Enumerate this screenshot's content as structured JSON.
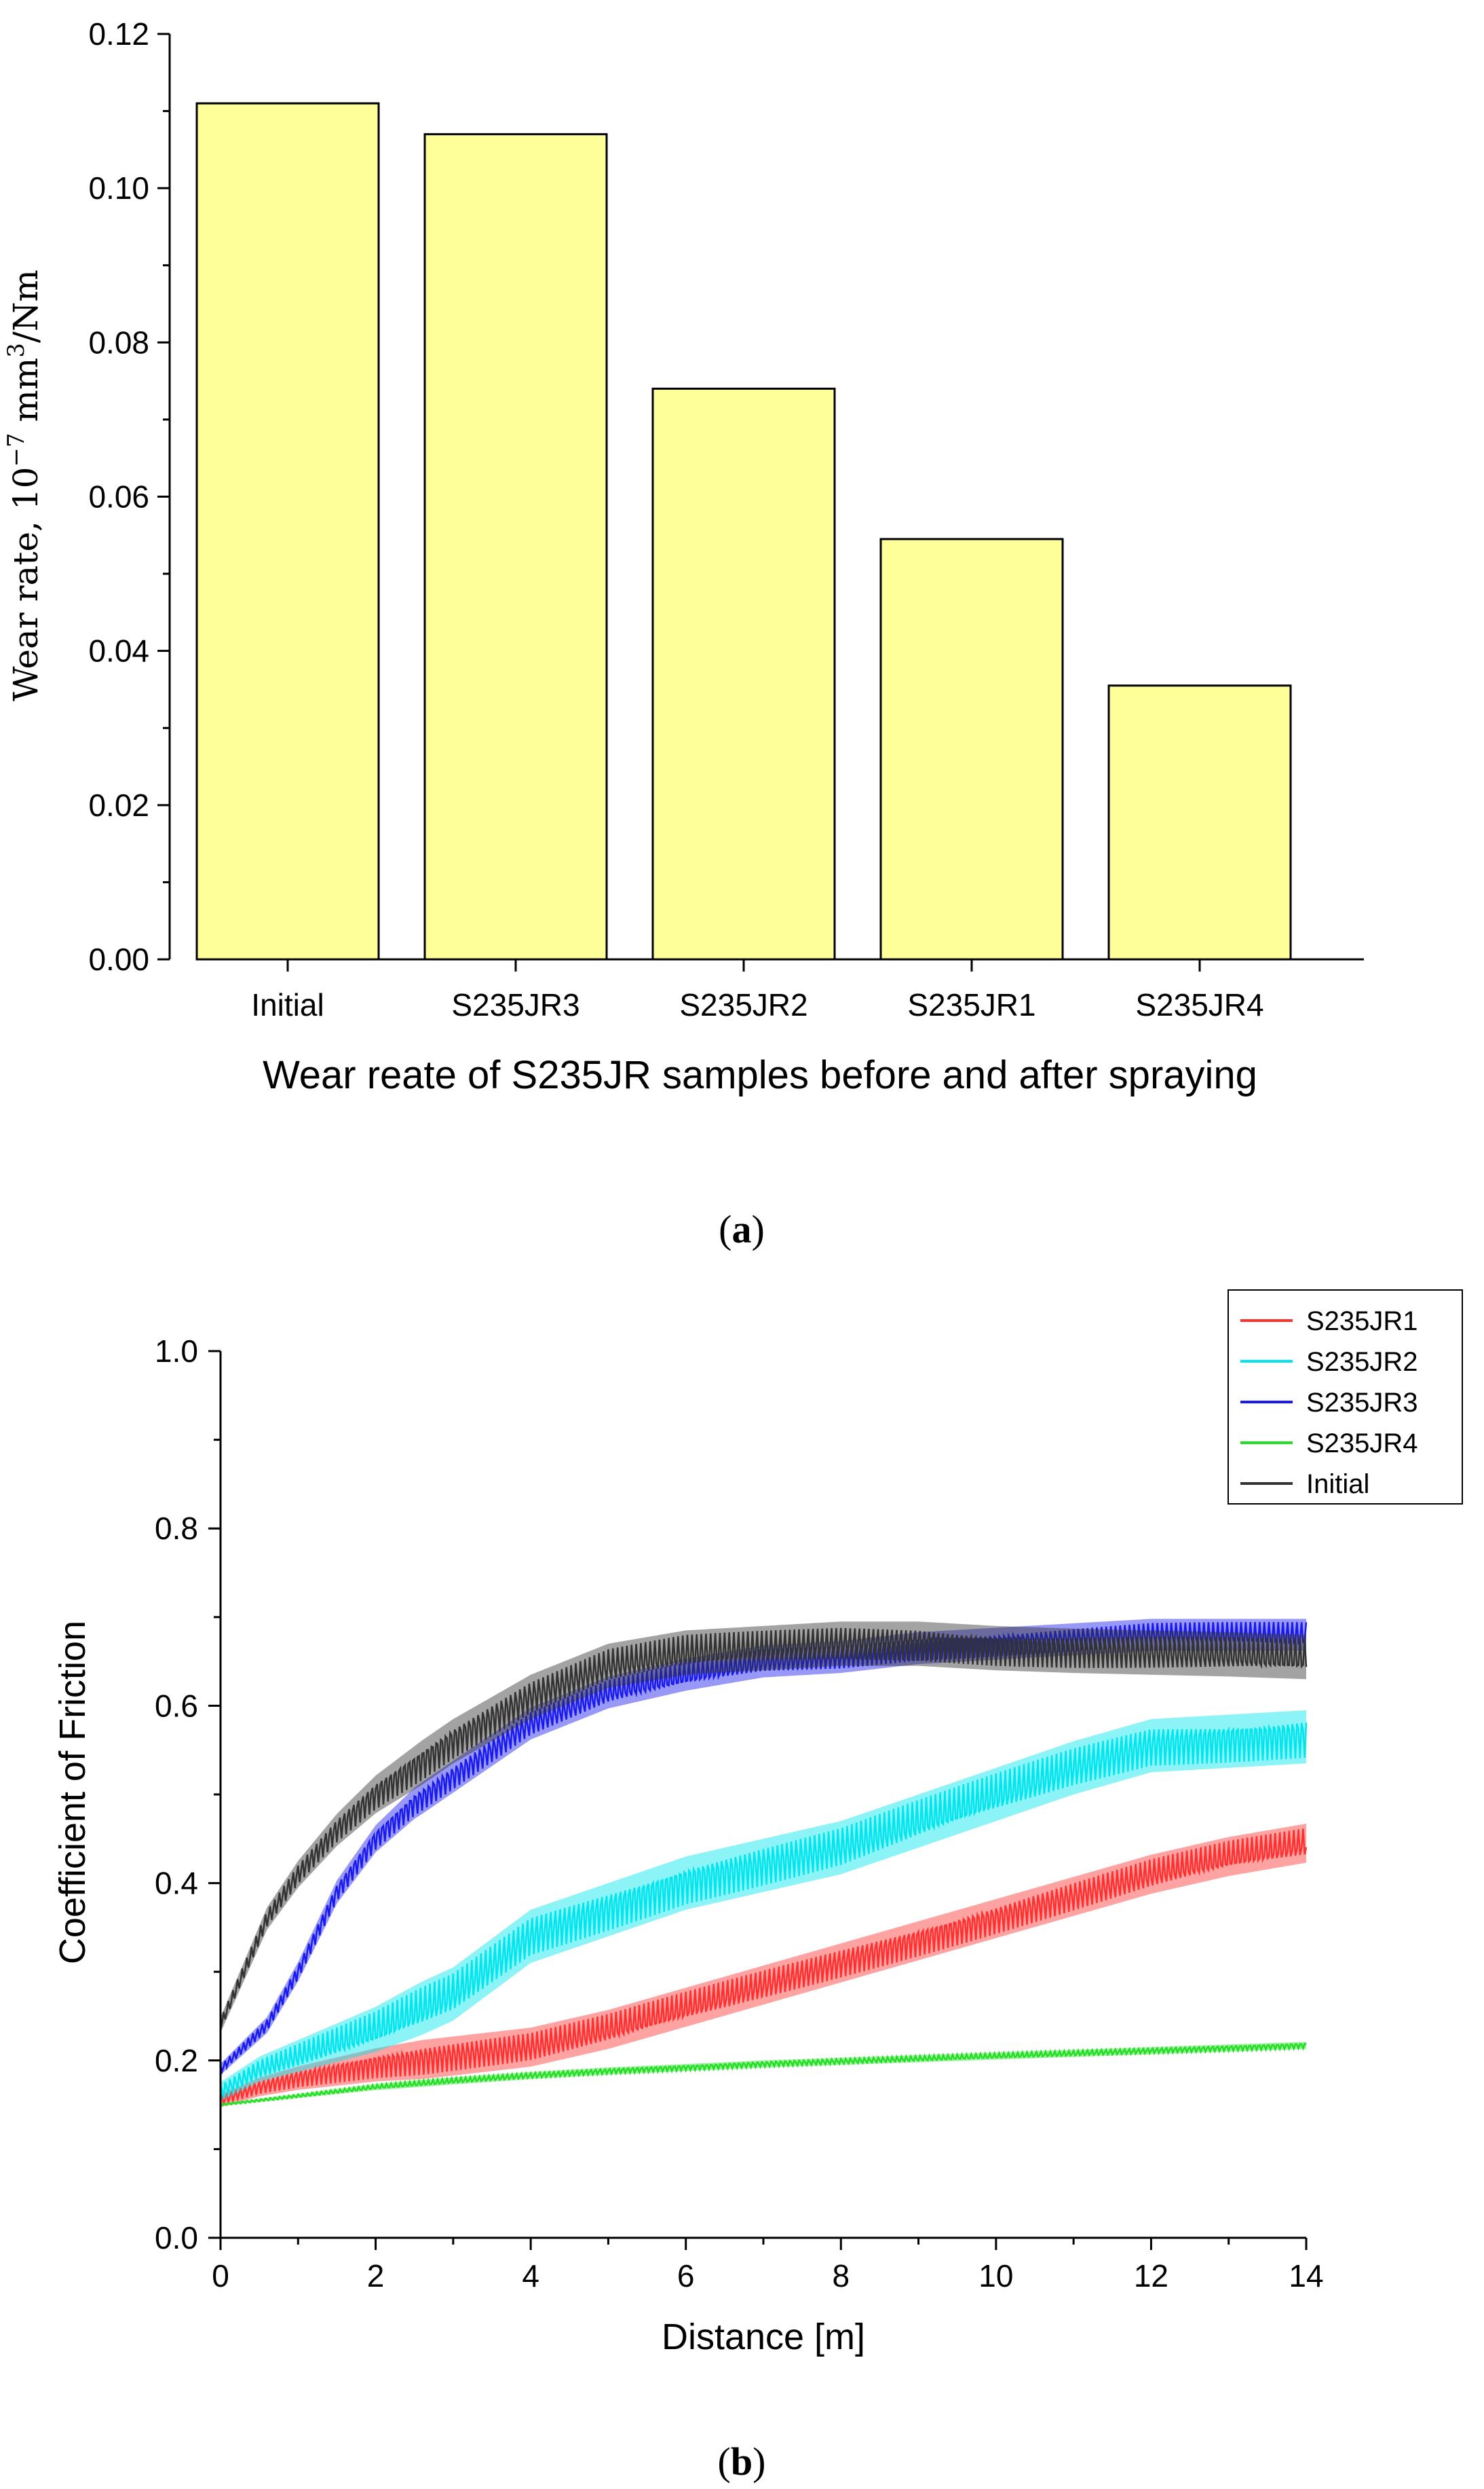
{
  "chart_data": [
    {
      "type": "bar",
      "panel_label": "(a)",
      "panel_letter": "a",
      "categories": [
        "Initial",
        "S235JR3",
        "S235JR2",
        "S235JR1",
        "S235JR4"
      ],
      "values": [
        0.111,
        0.107,
        0.074,
        0.0545,
        0.0355
      ],
      "bar_color": "#ffff99",
      "ylim": [
        0,
        0.12
      ],
      "yticks": [
        "0.00",
        "0.02",
        "0.04",
        "0.06",
        "0.08",
        "0.10",
        "0.12"
      ],
      "xlabel": "Wear reate of S235JR samples before and after spraying",
      "ylabel_prefix": "Wear rate, 10",
      "ylabel_exp": "−7",
      "ylabel_mid": " mm",
      "ylabel_exp2": "3",
      "ylabel_suffix": "/Nm"
    },
    {
      "type": "line",
      "panel_label": "(b)",
      "panel_letter": "b",
      "xlabel": "Distance [m]",
      "ylabel": "Coefficient of Friction",
      "xlim": [
        0,
        14
      ],
      "ylim": [
        0,
        1.0
      ],
      "xticks": [
        "0",
        "2",
        "4",
        "6",
        "8",
        "10",
        "12",
        "14"
      ],
      "yticks": [
        "0.0",
        "0.2",
        "0.4",
        "0.6",
        "0.8",
        "1.0"
      ],
      "legend_position": "top-right",
      "series": [
        {
          "name": "S235JR1",
          "color": "#ff3030",
          "noise": 0.022,
          "x": [
            0,
            0.5,
            1,
            2,
            3,
            4,
            5,
            6,
            7,
            8,
            9,
            10,
            11,
            12,
            13,
            14
          ],
          "y": [
            0.155,
            0.17,
            0.18,
            0.195,
            0.205,
            0.215,
            0.235,
            0.26,
            0.285,
            0.31,
            0.335,
            0.36,
            0.385,
            0.41,
            0.43,
            0.445
          ]
        },
        {
          "name": "S235JR2",
          "color": "#00e5ee",
          "noise": 0.03,
          "x": [
            0,
            0.5,
            1,
            2,
            3,
            4,
            5,
            6,
            7,
            8,
            9,
            10,
            11,
            12,
            13,
            14
          ],
          "y": [
            0.165,
            0.19,
            0.205,
            0.235,
            0.275,
            0.34,
            0.37,
            0.4,
            0.42,
            0.44,
            0.47,
            0.5,
            0.53,
            0.555,
            0.56,
            0.565
          ]
        },
        {
          "name": "S235JR3",
          "color": "#1a1aee",
          "noise": 0.018,
          "x": [
            0,
            0.3,
            0.6,
            1,
            1.5,
            2,
            2.5,
            3,
            4,
            5,
            6,
            7,
            8,
            9,
            10,
            11,
            12,
            13,
            14
          ],
          "y": [
            0.19,
            0.215,
            0.24,
            0.3,
            0.39,
            0.45,
            0.49,
            0.52,
            0.58,
            0.615,
            0.635,
            0.65,
            0.655,
            0.665,
            0.67,
            0.675,
            0.68,
            0.68,
            0.68
          ]
        },
        {
          "name": "S235JR4",
          "color": "#22dd22",
          "noise": 0.004,
          "x": [
            0,
            1,
            2,
            3,
            4,
            5,
            6,
            7,
            8,
            9,
            10,
            11,
            12,
            13,
            14
          ],
          "y": [
            0.15,
            0.16,
            0.17,
            0.177,
            0.183,
            0.188,
            0.192,
            0.196,
            0.199,
            0.202,
            0.205,
            0.208,
            0.211,
            0.214,
            0.217
          ]
        },
        {
          "name": "Initial",
          "color": "#333333",
          "noise": 0.025,
          "x": [
            0,
            0.3,
            0.6,
            1,
            1.5,
            2,
            2.5,
            3,
            4,
            5,
            6,
            7,
            8,
            9,
            10,
            11,
            12,
            13,
            14
          ],
          "y": [
            0.24,
            0.3,
            0.36,
            0.41,
            0.46,
            0.5,
            0.53,
            0.56,
            0.61,
            0.645,
            0.66,
            0.665,
            0.67,
            0.67,
            0.665,
            0.662,
            0.66,
            0.658,
            0.655
          ]
        }
      ]
    }
  ]
}
